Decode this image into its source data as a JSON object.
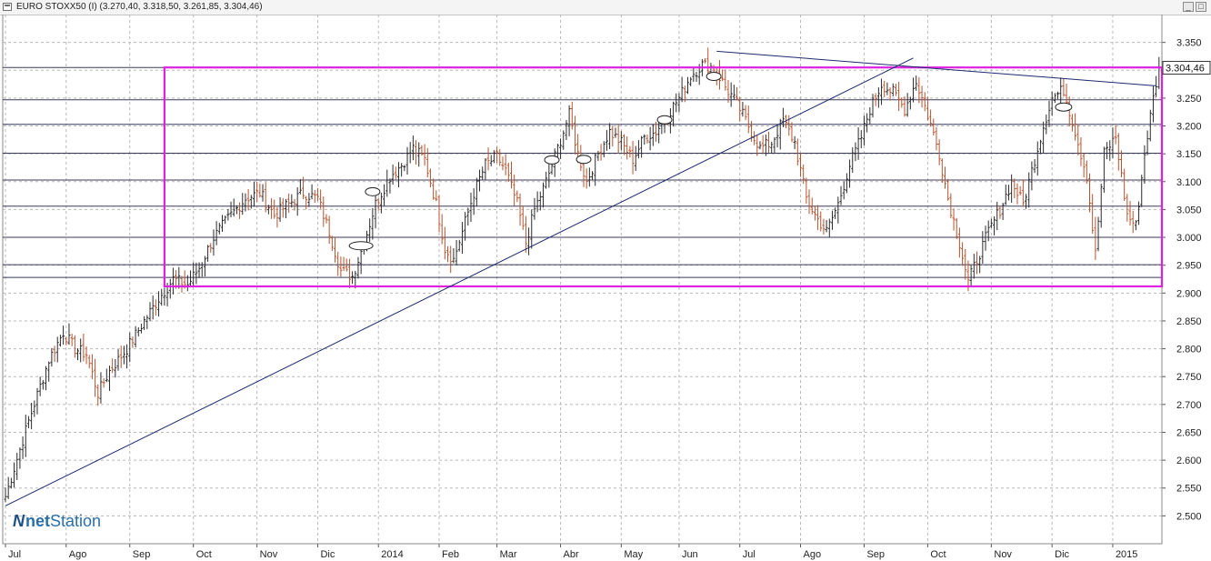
{
  "window": {
    "symbol": "EURO STOXX50 (I)",
    "ohlc": "(3.270,40, 3.318,50, 3.261,85, 3.304,46)"
  },
  "last_price_label": "3.304,46",
  "logo": {
    "brand_prefix": "net",
    "brand_suffix": "Station"
  },
  "colors": {
    "up_bar": "#2b2b2b",
    "down_bar": "#b5532f",
    "rectangle": "#e020e0",
    "trendline": "#1c2a6e",
    "hline": "#3a3a5a",
    "grid": "#b8b8b8"
  },
  "chart_data": {
    "type": "ohlc",
    "instrument": "EURO STOXX50 (I)",
    "ylim": [
      2450,
      3400
    ],
    "y_ticks": [
      "3.350",
      "3.300",
      "3.250",
      "3.200",
      "3.150",
      "3.100",
      "3.050",
      "3.000",
      "2.950",
      "2.900",
      "2.850",
      "2.800",
      "2.750",
      "2.700",
      "2.650",
      "2.600",
      "2.550",
      "2.500"
    ],
    "y_tick_values": [
      3350,
      3300,
      3250,
      3200,
      3150,
      3100,
      3050,
      3000,
      2950,
      2900,
      2850,
      2800,
      2750,
      2700,
      2650,
      2600,
      2550,
      2500
    ],
    "x_labels": [
      "Jul",
      "Ago",
      "Sep",
      "Oct",
      "Nov",
      "Dic",
      "2014",
      "Feb",
      "Mar",
      "Abr",
      "May",
      "Jun",
      "Jul",
      "Ago",
      "Sep",
      "Oct",
      "Nov",
      "Dic",
      "2015"
    ],
    "x_label_bars": [
      0,
      21,
      43,
      65,
      87,
      108,
      129,
      150,
      170,
      192,
      213,
      233,
      254,
      275,
      297,
      319,
      341,
      362,
      383
    ],
    "total_bars": 400,
    "last_close": 3304.46,
    "horizontal_lines": [
      3305,
      3247,
      3203,
      3151,
      3103,
      3056,
      3000,
      2951,
      2928
    ],
    "rectangle": {
      "x_start_bar": 55,
      "x_end_bar": 400,
      "y_low": 2912,
      "y_high": 3305
    },
    "trendlines": [
      {
        "x1": 0,
        "y1": 2518,
        "x2": 314,
        "y2": 3322
      },
      {
        "x1": 246,
        "y1": 3334,
        "x2": 398,
        "y2": 3272
      }
    ],
    "ellipses": [
      {
        "x": 123,
        "y": 2985
      },
      {
        "x": 127,
        "y": 3082
      },
      {
        "x": 189,
        "y": 3139
      },
      {
        "x": 200,
        "y": 3140
      },
      {
        "x": 228,
        "y": 3211
      },
      {
        "x": 245,
        "y": 3289
      },
      {
        "x": 366,
        "y": 3234
      }
    ],
    "anchors": [
      [
        0,
        2535
      ],
      [
        8,
        2670
      ],
      [
        15,
        2780
      ],
      [
        20,
        2830
      ],
      [
        24,
        2800
      ],
      [
        28,
        2790
      ],
      [
        32,
        2720
      ],
      [
        36,
        2760
      ],
      [
        42,
        2800
      ],
      [
        48,
        2850
      ],
      [
        53,
        2890
      ],
      [
        58,
        2925
      ],
      [
        63,
        2915
      ],
      [
        67,
        2945
      ],
      [
        72,
        3000
      ],
      [
        78,
        3040
      ],
      [
        83,
        3070
      ],
      [
        88,
        3080
      ],
      [
        93,
        3040
      ],
      [
        98,
        3060
      ],
      [
        103,
        3080
      ],
      [
        108,
        3070
      ],
      [
        112,
        3010
      ],
      [
        116,
        2940
      ],
      [
        120,
        2930
      ],
      [
        124,
        2990
      ],
      [
        128,
        3060
      ],
      [
        133,
        3110
      ],
      [
        137,
        3130
      ],
      [
        141,
        3160
      ],
      [
        145,
        3140
      ],
      [
        149,
        3060
      ],
      [
        152,
        2980
      ],
      [
        155,
        2960
      ],
      [
        158,
        3010
      ],
      [
        162,
        3080
      ],
      [
        166,
        3130
      ],
      [
        170,
        3145
      ],
      [
        173,
        3120
      ],
      [
        177,
        3060
      ],
      [
        180,
        2990
      ],
      [
        183,
        3050
      ],
      [
        187,
        3100
      ],
      [
        191,
        3160
      ],
      [
        195,
        3220
      ],
      [
        198,
        3150
      ],
      [
        201,
        3100
      ],
      [
        205,
        3150
      ],
      [
        209,
        3190
      ],
      [
        213,
        3170
      ],
      [
        217,
        3140
      ],
      [
        221,
        3180
      ],
      [
        225,
        3190
      ],
      [
        229,
        3220
      ],
      [
        233,
        3250
      ],
      [
        237,
        3290
      ],
      [
        241,
        3310
      ],
      [
        245,
        3305
      ],
      [
        249,
        3270
      ],
      [
        253,
        3240
      ],
      [
        257,
        3200
      ],
      [
        261,
        3160
      ],
      [
        265,
        3170
      ],
      [
        269,
        3210
      ],
      [
        273,
        3170
      ],
      [
        277,
        3070
      ],
      [
        280,
        3040
      ],
      [
        284,
        3010
      ],
      [
        288,
        3060
      ],
      [
        292,
        3130
      ],
      [
        296,
        3180
      ],
      [
        299,
        3230
      ],
      [
        303,
        3275
      ],
      [
        307,
        3260
      ],
      [
        311,
        3230
      ],
      [
        315,
        3280
      ],
      [
        319,
        3220
      ],
      [
        323,
        3150
      ],
      [
        326,
        3070
      ],
      [
        330,
        2990
      ],
      [
        333,
        2920
      ],
      [
        336,
        2960
      ],
      [
        340,
        3010
      ],
      [
        344,
        3050
      ],
      [
        348,
        3100
      ],
      [
        352,
        3060
      ],
      [
        356,
        3140
      ],
      [
        359,
        3200
      ],
      [
        362,
        3250
      ],
      [
        366,
        3265
      ],
      [
        370,
        3190
      ],
      [
        374,
        3110
      ],
      [
        377,
        2970
      ],
      [
        380,
        3150
      ],
      [
        384,
        3180
      ],
      [
        388,
        3040
      ],
      [
        391,
        3020
      ],
      [
        394,
        3150
      ],
      [
        397,
        3250
      ],
      [
        399,
        3304
      ]
    ]
  }
}
